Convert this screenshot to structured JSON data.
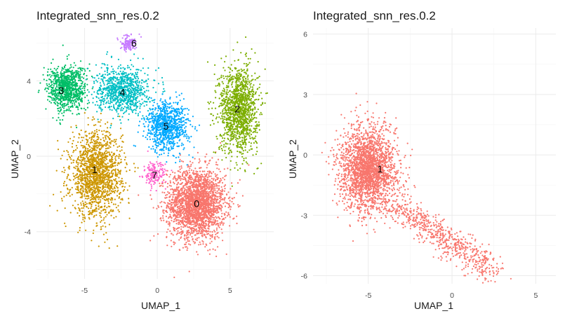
{
  "chart_data": [
    {
      "type": "scatter",
      "title": "Integrated_snn_res.0.2",
      "xlabel": "UMAP_1",
      "ylabel": "UMAP_2",
      "xlim": [
        -8.3,
        8.0
      ],
      "ylim": [
        -6.5,
        6.8
      ],
      "x_ticks": [
        -5,
        0,
        5
      ],
      "y_ticks": [
        -4,
        0,
        4
      ],
      "grid": true,
      "legend": "none",
      "clusters": [
        {
          "label": "0",
          "color": "#F8766D",
          "center": [
            2.7,
            -2.5
          ],
          "spread": [
            1.8,
            1.7
          ],
          "count": 2400
        },
        {
          "label": "1",
          "color": "#CD9600",
          "center": [
            -4.2,
            -1.0
          ],
          "spread": [
            1.6,
            2.0
          ],
          "count": 1600
        },
        {
          "label": "2",
          "color": "#7CAE00",
          "center": [
            5.6,
            2.5
          ],
          "spread": [
            1.2,
            2.1
          ],
          "count": 1300
        },
        {
          "label": "3",
          "color": "#00BE67",
          "center": [
            -6.2,
            3.6
          ],
          "spread": [
            1.2,
            1.1
          ],
          "count": 900
        },
        {
          "label": "4",
          "color": "#00BFC4",
          "center": [
            -2.4,
            3.5
          ],
          "spread": [
            1.6,
            1.1
          ],
          "count": 900
        },
        {
          "label": "5",
          "color": "#00A9FF",
          "center": [
            0.7,
            1.6
          ],
          "spread": [
            1.3,
            1.2
          ],
          "count": 900
        },
        {
          "label": "6",
          "color": "#C77CFF",
          "center": [
            -2.0,
            6.0
          ],
          "spread": [
            0.5,
            0.35
          ],
          "count": 120
        },
        {
          "label": "7",
          "color": "#FF61CC",
          "center": [
            -0.2,
            -1.0
          ],
          "spread": [
            0.7,
            0.6
          ],
          "count": 150
        }
      ],
      "cluster_labels": [
        {
          "text": "0",
          "x": 2.7,
          "y": -2.5
        },
        {
          "text": "1",
          "x": -4.3,
          "y": -0.7
        },
        {
          "text": "2",
          "x": 5.5,
          "y": 2.5
        },
        {
          "text": "3",
          "x": -6.6,
          "y": 3.5
        },
        {
          "text": "4",
          "x": -2.4,
          "y": 3.4
        },
        {
          "text": "5",
          "x": 0.6,
          "y": 1.6
        },
        {
          "text": "6",
          "x": -1.6,
          "y": 6.0
        },
        {
          "text": "7",
          "x": -0.2,
          "y": -1.0
        }
      ]
    },
    {
      "type": "scatter",
      "title": "Integrated_snn_res.0.2",
      "xlabel": "UMAP_1",
      "ylabel": "UMAP_2",
      "xlim": [
        -8.3,
        6.2
      ],
      "ylim": [
        -6.4,
        6.3
      ],
      "x_ticks": [
        -5,
        0,
        5
      ],
      "y_ticks": [
        -6,
        -3,
        0,
        3,
        6
      ],
      "grid": true,
      "legend": "none",
      "clusters": [
        {
          "label": "1",
          "color": "#F8766D",
          "center": [
            -5.0,
            -0.7
          ],
          "spread": [
            1.5,
            1.9
          ],
          "count": 3000
        }
      ],
      "cluster_labels": [
        {
          "text": "1",
          "x": -4.3,
          "y": -0.7
        }
      ]
    }
  ]
}
